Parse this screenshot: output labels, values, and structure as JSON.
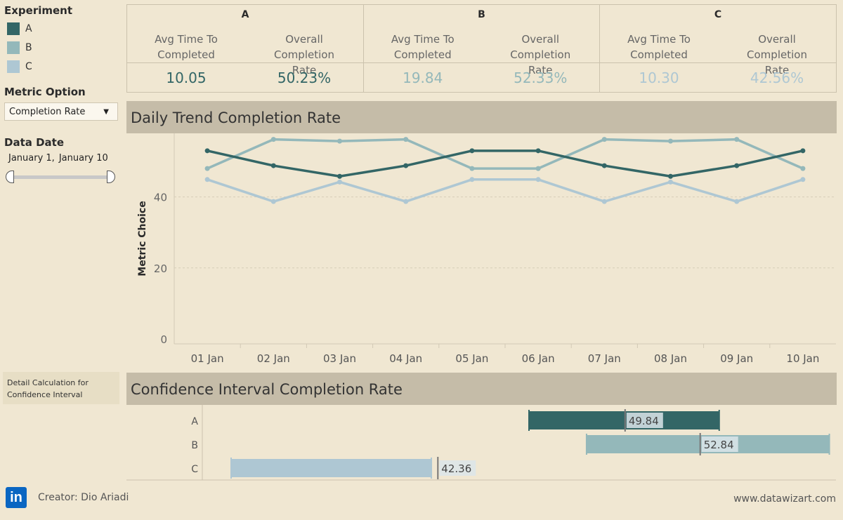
{
  "colors": {
    "A": "#336666",
    "B": "#94b8ba",
    "C": "#aec7d3"
  },
  "experiment_legend": {
    "title": "Experiment",
    "items": [
      {
        "label": "A"
      },
      {
        "label": "B"
      },
      {
        "label": "C"
      }
    ]
  },
  "metric_option": {
    "title": "Metric Option",
    "selected": "Completion Rate"
  },
  "data_date": {
    "title": "Data Date",
    "start": "January 1,",
    "end": "January 10"
  },
  "kpi": {
    "groups": [
      {
        "name": "A",
        "label1": "Avg Time To Completed",
        "label2": "Overall Completion Rate",
        "value1": "10.05",
        "value2": "50.23%"
      },
      {
        "name": "B",
        "label1": "Avg Time To Completed",
        "label2": "Overall Completion Rate",
        "value1": "19.84",
        "value2": "52.33%"
      },
      {
        "name": "C",
        "label1": "Avg Time To Completed",
        "label2": "Overall Completion Rate",
        "value1": "10.30",
        "value2": "42.56%"
      }
    ]
  },
  "trend": {
    "title": "Daily Trend Completion Rate"
  },
  "ci": {
    "title": "Confidence Interval Completion Rate"
  },
  "detail_box": {
    "line1": "Detail Calculation for",
    "line2": "Confidence Interval"
  },
  "footer": {
    "creator": "Creator: Dio Ariadi",
    "website": "www.datawizart.com",
    "logo_text": "in"
  },
  "chart_data": [
    {
      "type": "line",
      "title": "Daily Trend Completion Rate",
      "ylabel": "Metric Choice",
      "xlabel": "",
      "categories": [
        "01 Jan",
        "02 Jan",
        "03 Jan",
        "04 Jan",
        "05 Jan",
        "06 Jan",
        "07 Jan",
        "08 Jan",
        "09 Jan",
        "10 Jan"
      ],
      "yticks": [
        0,
        20,
        40
      ],
      "ylim": [
        0,
        58
      ],
      "grid": true,
      "series": [
        {
          "name": "A",
          "values": [
            53,
            48.8,
            45.8,
            48.8,
            53,
            53,
            48.8,
            45.8,
            48.8,
            53
          ]
        },
        {
          "name": "B",
          "values": [
            48,
            56.2,
            55.7,
            56.2,
            48,
            48,
            56.2,
            55.7,
            56.2,
            48
          ]
        },
        {
          "name": "C",
          "values": [
            44.9,
            38.7,
            44.2,
            38.7,
            44.9,
            44.9,
            38.7,
            44.2,
            38.7,
            44.9
          ]
        }
      ]
    },
    {
      "type": "bar",
      "title": "Confidence Interval Completion Rate",
      "categories": [
        "A",
        "B",
        "C"
      ],
      "xlim": [
        33,
        63
      ],
      "series": [
        {
          "name": "A",
          "low": 46.0,
          "high": 53.6,
          "point": 49.84,
          "label": "49.84"
        },
        {
          "name": "B",
          "low": 48.3,
          "high": 58.0,
          "point": 52.84,
          "label": "52.84"
        },
        {
          "name": "C",
          "low": 34.1,
          "high": 42.1,
          "point": 42.36,
          "label": "42.36"
        }
      ]
    }
  ]
}
